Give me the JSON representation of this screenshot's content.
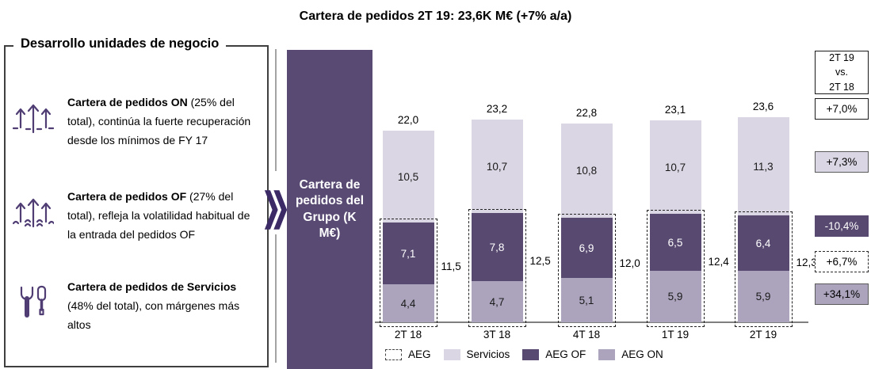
{
  "title": "Cartera de pedidos 2T 19: 23,6K M€ (+7% a/a)",
  "left_panel": {
    "heading": "Desarrollo unidades de negocio",
    "items": [
      {
        "icon": "onshore-turbines-icon",
        "bold": "Cartera de pedidos ON",
        "text": " (25% del total), continúa la fuerte recuperación desde los mínimos de FY 17"
      },
      {
        "icon": "offshore-turbines-icon",
        "bold": "Cartera de pedidos OF",
        "text": " (27% del total), refleja la volatilidad habitual de la entrada del pedidos OF"
      },
      {
        "icon": "tools-icon",
        "bold": "Cartera de pedidos de Servicios",
        "text": " (48% del total), con márgenes más altos"
      }
    ]
  },
  "banner": {
    "label": "Cartera de pedidos del Grupo (K M€)"
  },
  "chart_data": {
    "type": "bar",
    "stacked": true,
    "title": "Cartera de pedidos del Grupo",
    "unit": "K M€",
    "categories": [
      "2T 18",
      "3T 18",
      "4T 18",
      "1T 19",
      "2T 19"
    ],
    "series": [
      {
        "name": "AEG ON",
        "key": "aeg-on",
        "color": "#aca4bd",
        "values": [
          4.4,
          4.7,
          5.1,
          5.9,
          5.9
        ],
        "labels": [
          "4,4",
          "4,7",
          "5,1",
          "5,9",
          "5,9"
        ]
      },
      {
        "name": "AEG OF",
        "key": "aeg-of",
        "color": "#584970",
        "values": [
          7.1,
          7.8,
          6.9,
          6.5,
          6.4
        ],
        "labels": [
          "7,1",
          "7,8",
          "6,9",
          "6,5",
          "6,4"
        ]
      },
      {
        "name": "Servicios",
        "key": "servicios",
        "color": "#dad6e3",
        "values": [
          10.5,
          10.7,
          10.8,
          10.7,
          11.3
        ],
        "labels": [
          "10,5",
          "10,7",
          "10,8",
          "10,7",
          "11,3"
        ]
      }
    ],
    "totals": [
      "22,0",
      "23,2",
      "22,8",
      "23,1",
      "23,6"
    ],
    "aeg_totals": [
      "11,5",
      "12,5",
      "12,0",
      "12,4",
      "12,3"
    ],
    "legend": [
      {
        "label": "AEG",
        "swatch": "dashed"
      },
      {
        "label": "Servicios",
        "swatch": "servicios"
      },
      {
        "label": "AEG OF",
        "swatch": "aeg-of"
      },
      {
        "label": "AEG ON",
        "swatch": "aeg-on"
      }
    ],
    "grid": false,
    "legend_position": "bottom"
  },
  "comparison": {
    "header": "2T 19\nvs.\n2T 18",
    "badges": [
      {
        "label": "+7,0%",
        "style": "white"
      },
      {
        "label": "+7,3%",
        "style": "light"
      },
      {
        "label": "-10,4%",
        "style": "dark"
      },
      {
        "label": "+6,7%",
        "style": "dashed"
      },
      {
        "label": "+34,1%",
        "style": "medium"
      }
    ]
  },
  "colors": {
    "banner": "#594a73",
    "aeg_of": "#584970",
    "aeg_on": "#aca4bd",
    "servicios": "#dad6e3",
    "axis": "#7f7f7f",
    "chevron": "#3b2a66"
  }
}
